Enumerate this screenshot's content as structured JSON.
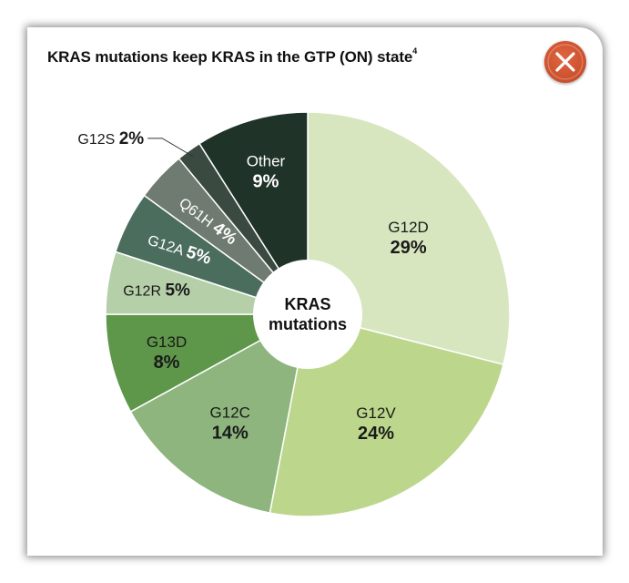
{
  "card": {
    "title": "KRAS mutations keep KRAS in the GTP (ON) state",
    "title_superscript": "4",
    "close_icon": "close-icon"
  },
  "chart_data": {
    "type": "pie",
    "center_label": [
      "KRAS",
      "mutations"
    ],
    "slices": [
      {
        "label": "G12D",
        "value": 29,
        "display": "29%",
        "color": "#d8e6c0",
        "text_color": "#1a1a1a"
      },
      {
        "label": "G12V",
        "value": 24,
        "display": "24%",
        "color": "#bcd78c",
        "text_color": "#1a1a1a"
      },
      {
        "label": "G12C",
        "value": 14,
        "display": "14%",
        "color": "#8db57d",
        "text_color": "#1a1a1a"
      },
      {
        "label": "G13D",
        "value": 8,
        "display": "8%",
        "color": "#5e964a",
        "text_color": "#1a1a1a"
      },
      {
        "label": "G12R",
        "value": 5,
        "display": "5%",
        "color": "#b5cfa9",
        "text_color": "#1a1a1a"
      },
      {
        "label": "G12A",
        "value": 5,
        "display": "5%",
        "color": "#4a6d5e",
        "text_color": "#ffffff"
      },
      {
        "label": "Q61H",
        "value": 4,
        "display": "4%",
        "color": "#6f7a71",
        "text_color": "#ffffff"
      },
      {
        "label": "G12S",
        "value": 2,
        "display": "2%",
        "color": "#3a4a40",
        "text_color": "#1a1a1a"
      },
      {
        "label": "Other",
        "value": 9,
        "display": "9%",
        "color": "#1f3329",
        "text_color": "#ffffff"
      }
    ]
  }
}
